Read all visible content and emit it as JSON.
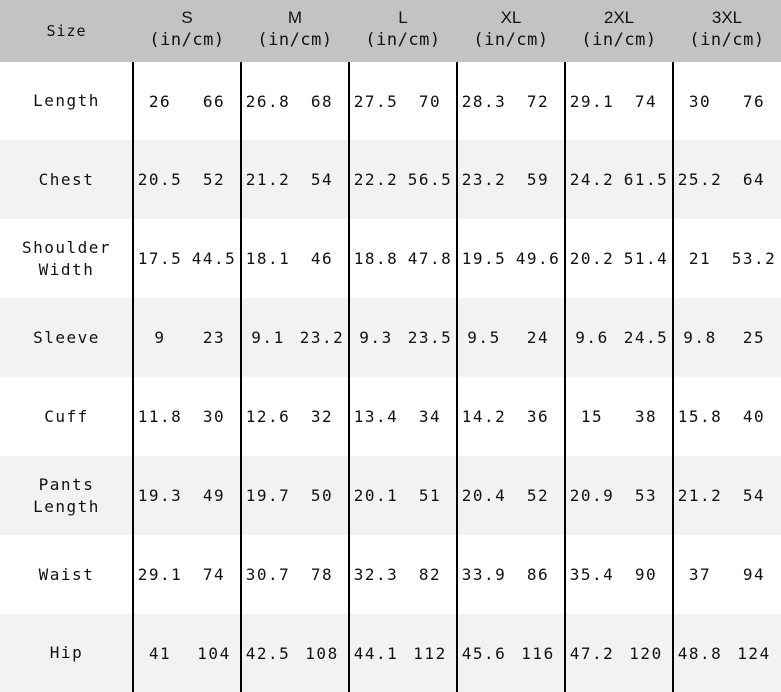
{
  "header": {
    "size_label": "Size",
    "unit_label": "(in/cm)",
    "sizes": [
      "S",
      "M",
      "L",
      "XL",
      "2XL",
      "3XL"
    ]
  },
  "rows": [
    {
      "label": "Length",
      "values": [
        "26",
        "66",
        "26.8",
        "68",
        "27.5",
        "70",
        "28.3",
        "72",
        "29.1",
        "74",
        "30",
        "76"
      ]
    },
    {
      "label": "Chest",
      "values": [
        "20.5",
        "52",
        "21.2",
        "54",
        "22.2",
        "56.5",
        "23.2",
        "59",
        "24.2",
        "61.5",
        "25.2",
        "64"
      ]
    },
    {
      "label": "Shoulder Width",
      "values": [
        "17.5",
        "44.5",
        "18.1",
        "46",
        "18.8",
        "47.8",
        "19.5",
        "49.6",
        "20.2",
        "51.4",
        "21",
        "53.2"
      ]
    },
    {
      "label": "Sleeve",
      "values": [
        "9",
        "23",
        "9.1",
        "23.2",
        "9.3",
        "23.5",
        "9.5",
        "24",
        "9.6",
        "24.5",
        "9.8",
        "25"
      ]
    },
    {
      "label": "Cuff",
      "values": [
        "11.8",
        "30",
        "12.6",
        "32",
        "13.4",
        "34",
        "14.2",
        "36",
        "15",
        "38",
        "15.8",
        "40"
      ]
    },
    {
      "label": "Pants Length",
      "values": [
        "19.3",
        "49",
        "19.7",
        "50",
        "20.1",
        "51",
        "20.4",
        "52",
        "20.9",
        "53",
        "21.2",
        "54"
      ]
    },
    {
      "label": "Waist",
      "values": [
        "29.1",
        "74",
        "30.7",
        "78",
        "32.3",
        "82",
        "33.9",
        "86",
        "35.4",
        "90",
        "37",
        "94"
      ]
    },
    {
      "label": "Hip",
      "values": [
        "41",
        "104",
        "42.5",
        "108",
        "44.1",
        "112",
        "45.6",
        "116",
        "47.2",
        "120",
        "48.8",
        "124"
      ]
    }
  ],
  "colors": {
    "header_bg": "#c3c3c3",
    "alt_row_bg": "#f2f2f2",
    "grid_line": "#000000"
  }
}
